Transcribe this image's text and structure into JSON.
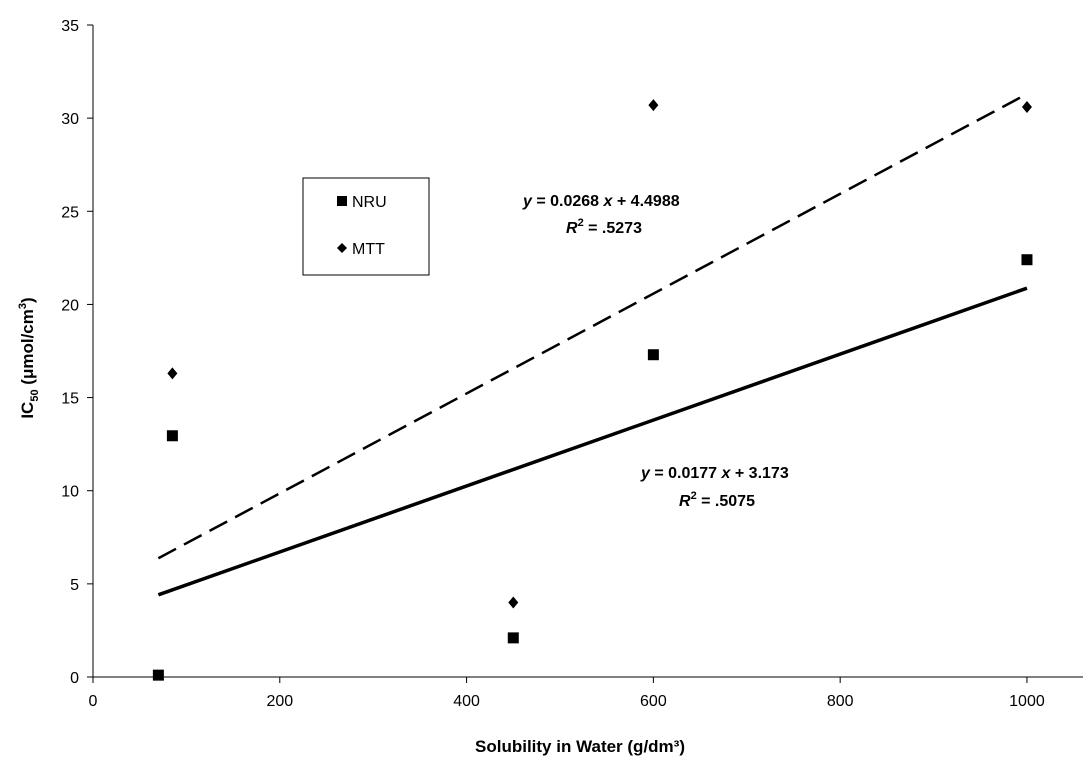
{
  "chart_data": {
    "type": "scatter",
    "xlabel": "Solubility in Water (g/dm³)",
    "ylabel_main": "IC",
    "ylabel_sub": "50",
    "ylabel_rest": " (μmol/cm",
    "ylabel_sup": "3",
    "ylabel_close": ")",
    "xlim": [
      0,
      1060
    ],
    "ylim": [
      0,
      35
    ],
    "xticks": [
      0,
      200,
      400,
      600,
      800,
      1000
    ],
    "yticks": [
      0,
      5,
      10,
      15,
      20,
      25,
      30,
      35
    ],
    "grid": false,
    "legend_position": "upper-left",
    "series": [
      {
        "name": "NRU",
        "marker": "square",
        "color": "#000000",
        "points": [
          [
            70,
            0.1
          ],
          [
            85,
            12.95
          ],
          [
            450,
            2.1
          ],
          [
            600,
            17.3
          ],
          [
            1000,
            22.4
          ]
        ],
        "trendline": {
          "style": "solid",
          "slope": 0.0177,
          "intercept": 3.173,
          "x_range": [
            70,
            1000
          ]
        },
        "equation": {
          "y_part": "y",
          "eq_part": " = 0.0177 ",
          "x_part": "x",
          "tail": " + 3.173",
          "r_label": "R",
          "r_sup": "2",
          "r_value": " = .5075"
        }
      },
      {
        "name": "MTT",
        "marker": "diamond",
        "color": "#000000",
        "points": [
          [
            85,
            16.3
          ],
          [
            450,
            4.0
          ],
          [
            600,
            30.7
          ],
          [
            1000,
            30.6
          ]
        ],
        "trendline": {
          "style": "dashed",
          "slope": 0.0268,
          "intercept": 4.4988,
          "x_range": [
            70,
            1000
          ]
        },
        "equation": {
          "y_part": "y",
          "eq_part": " = 0.0268 ",
          "x_part": "x",
          "tail": " + 4.4988",
          "r_label": "R",
          "r_sup": "2",
          "r_value": " = .5273"
        }
      }
    ]
  }
}
